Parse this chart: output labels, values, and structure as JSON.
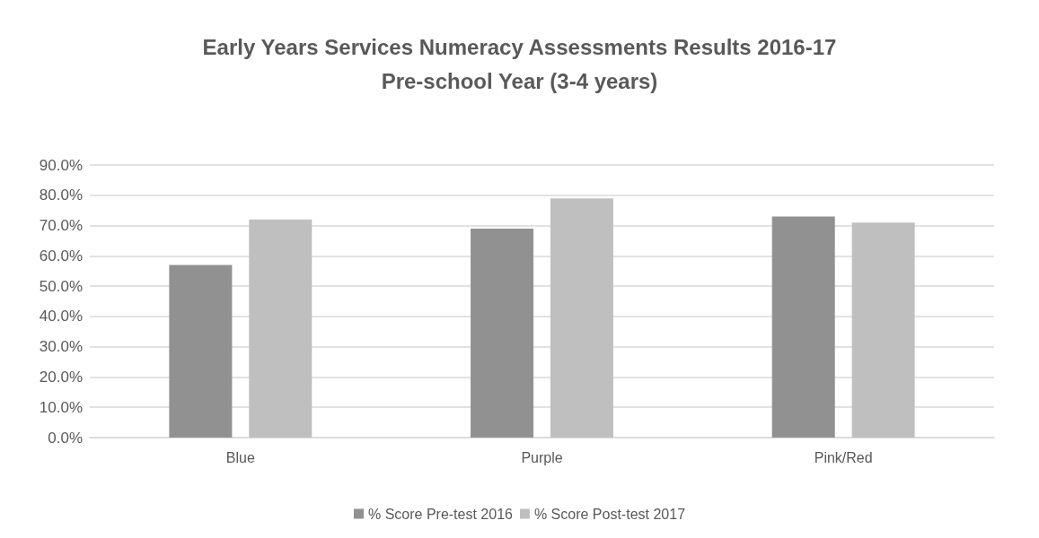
{
  "chart_data": {
    "type": "bar",
    "title": "Early Years Services Numeracy Assessments Results 2016-17\nPre-school Year (3-4 years)",
    "categories": [
      "Blue",
      "Purple",
      "Pink/Red"
    ],
    "series": [
      {
        "name": "% Score Pre-test 2016",
        "color": "#919191",
        "values": [
          57,
          69,
          73
        ]
      },
      {
        "name": "% Score Post-test 2017",
        "color": "#bfbfbf",
        "values": [
          72,
          79,
          71
        ]
      }
    ],
    "ylim": [
      0,
      90
    ],
    "yticks": [
      {
        "value": 0,
        "label": "0.0%"
      },
      {
        "value": 10,
        "label": "10.0%"
      },
      {
        "value": 20,
        "label": "20.0%"
      },
      {
        "value": 30,
        "label": "30.0%"
      },
      {
        "value": 40,
        "label": "40.0%"
      },
      {
        "value": 50,
        "label": "50.0%"
      },
      {
        "value": 60,
        "label": "60.0%"
      },
      {
        "value": 70,
        "label": "70.0%"
      },
      {
        "value": 80,
        "label": "80.0%"
      },
      {
        "value": 90,
        "label": "90.0%"
      }
    ],
    "grid": "y",
    "legend": "bottom"
  }
}
